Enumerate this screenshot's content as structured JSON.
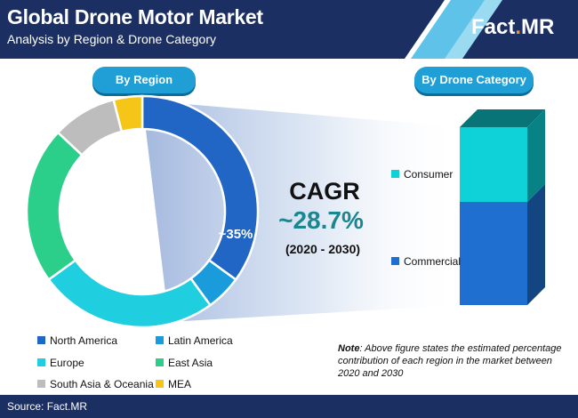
{
  "header": {
    "title": "Global Drone Motor Market",
    "subtitle": "Analysis by Region & Drone Category",
    "brand_main": "Fact",
    "brand_dot": ".",
    "brand_suffix": "MR"
  },
  "sections": {
    "region_label": "By Region",
    "category_label": "By Drone Category"
  },
  "cagr": {
    "title": "CAGR",
    "value": "~28.7%",
    "period": "(2020 - 2030)"
  },
  "note": {
    "label": "Note",
    "text": ": Above figure states the estimated percentage contribution of each region in the market between 2020 and 2030"
  },
  "source": "Source: Fact.MR",
  "colors": {
    "navy": "#1b2f63",
    "accent_blue": "#1f9fd5",
    "north_america": "#2166c4",
    "latin_america": "#1a9cdc",
    "europe": "#1fcfe0",
    "east_asia": "#2bcf8a",
    "south_asia_oceania": "#bdbdbd",
    "mea": "#f5c518",
    "consumer": "#0fd2d8",
    "commercial": "#1f6fd0"
  },
  "chart_data": [
    {
      "type": "pie",
      "donut": true,
      "title": "By Region",
      "categories": [
        "North America",
        "Latin America",
        "Europe",
        "East Asia",
        "South Asia & Oceania",
        "MEA"
      ],
      "values": [
        35,
        5,
        25,
        22,
        9,
        4
      ],
      "data_labels": [
        "~35%"
      ],
      "colors": [
        "#2166c4",
        "#1a9cdc",
        "#1fcfe0",
        "#2bcf8a",
        "#bdbdbd",
        "#f5c518"
      ],
      "legend": "bottom"
    },
    {
      "type": "bar",
      "stacked": true,
      "title": "By Drone Category",
      "categories": [
        "Commercial",
        "Consumer"
      ],
      "values": [
        58,
        42
      ],
      "colors": [
        "#1f6fd0",
        "#0fd2d8"
      ],
      "legend": "left"
    }
  ]
}
